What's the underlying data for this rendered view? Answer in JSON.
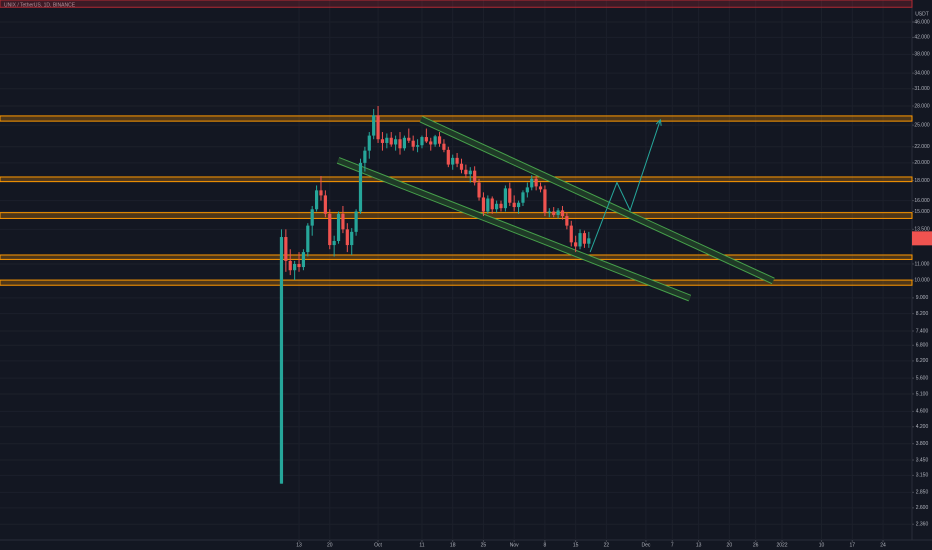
{
  "chart_data": {
    "type": "candlestick",
    "title": "UNIX / TetherUS, 1D, BINANCE",
    "price_axis_unit": "USDT",
    "log_scale": true,
    "up_color": "#26a69a",
    "down_color": "#ef5350",
    "x": [
      9,
      10,
      11,
      12,
      13,
      14,
      15,
      16,
      17,
      18,
      19,
      20,
      21,
      22,
      23,
      24,
      25,
      26,
      27,
      28,
      29,
      30,
      31,
      32,
      33,
      34,
      35,
      36,
      37,
      38,
      39,
      40,
      41,
      42,
      43,
      44,
      45,
      46,
      47,
      48,
      49,
      50,
      51,
      52,
      53,
      54,
      55,
      56,
      57,
      58,
      59,
      60,
      61,
      62,
      63,
      64,
      65,
      66,
      67,
      68,
      69,
      70,
      71,
      72,
      73,
      74,
      75,
      76,
      77,
      78,
      79
    ],
    "open": [
      3.0,
      12.9,
      11.2,
      10.6,
      11.0,
      10.8,
      11.8,
      13.8,
      15.2,
      17,
      16.5,
      14.8,
      12.3,
      12.6,
      14.8,
      13.5,
      12.3,
      13.3,
      15,
      20,
      21.5,
      23.5,
      26.5,
      23,
      22.5,
      23.2,
      22.3,
      23,
      21.8,
      23.2,
      22.8,
      22,
      22.2,
      23.3,
      22.7,
      22.3,
      23.4,
      22.4,
      21.6,
      19.8,
      20.6,
      19.9,
      19.2,
      18.7,
      19.1,
      17.8,
      16.3,
      15,
      16.2,
      15.2,
      15.7,
      15.3,
      17.2,
      15.8,
      15.4,
      15.8,
      16.8,
      17.3,
      18.2,
      17.4,
      17.1,
      14.9,
      15,
      14.7,
      15.1,
      14.6,
      13.8,
      12.5,
      12.2,
      13.2,
      12.4
    ],
    "high": [
      13.5,
      13.5,
      12,
      11.2,
      11.8,
      12,
      14,
      15.5,
      17.5,
      18.5,
      17,
      15.2,
      13,
      15,
      15.5,
      14,
      13.6,
      15.2,
      20.5,
      22,
      24,
      27.5,
      28,
      24,
      23.8,
      24,
      23.5,
      24,
      23.5,
      24.5,
      23.5,
      23,
      23.5,
      24.5,
      23.2,
      23.6,
      24,
      23,
      22,
      21,
      21.2,
      20.5,
      19.8,
      19.5,
      19.6,
      18.2,
      16.8,
      16.5,
      16.4,
      16,
      16,
      17.5,
      17.8,
      16.5,
      16,
      17,
      17.8,
      18.6,
      18.5,
      17.8,
      17.5,
      15.3,
      15.4,
      15.3,
      15.5,
      14.9,
      14.2,
      13,
      13.5,
      13.4,
      13.3
    ],
    "low": [
      3.0,
      10.5,
      10.3,
      10.0,
      10.5,
      10.6,
      11.5,
      13,
      15,
      16,
      14.5,
      12,
      11.5,
      12.4,
      13.2,
      11.8,
      11.6,
      13,
      14.8,
      19,
      20.5,
      23,
      22.5,
      21.5,
      21.8,
      22,
      21.5,
      21,
      21.5,
      22.5,
      21.5,
      21.3,
      21.8,
      22.5,
      21.5,
      22,
      22,
      21.3,
      19.5,
      19.2,
      19.5,
      18.8,
      18.3,
      17.8,
      17.5,
      16,
      14.6,
      14.8,
      14.8,
      14.9,
      15,
      15,
      15.5,
      15,
      14.8,
      15.5,
      16.3,
      17,
      17,
      16.8,
      14.6,
      14.5,
      14.5,
      14.4,
      14.3,
      13.5,
      12.2,
      11.8,
      12,
      12.1,
      12.1
    ],
    "close": [
      12.9,
      11.2,
      10.6,
      11.0,
      10.8,
      11.8,
      13.8,
      15.2,
      17,
      16.5,
      14.8,
      12.3,
      12.6,
      14.8,
      13.5,
      12.3,
      13.3,
      15,
      20,
      21.5,
      23.5,
      26.5,
      23,
      22.5,
      23.2,
      22.3,
      23,
      21.8,
      23.2,
      22.8,
      22,
      22.2,
      23.3,
      22.7,
      22.3,
      23.4,
      22.4,
      21.6,
      19.8,
      20.6,
      19.9,
      19.2,
      18.7,
      19.1,
      17.8,
      16.3,
      15,
      16.2,
      15.2,
      15.7,
      15.3,
      17.2,
      15.8,
      15.4,
      15.8,
      16.8,
      17.3,
      18.2,
      17.4,
      17.1,
      14.9,
      15,
      14.7,
      15.1,
      14.6,
      13.8,
      12.5,
      12.2,
      13.2,
      12.4,
      12.8
    ],
    "xlim": [
      -55.1,
      152.6
    ],
    "ylim": [
      2.15,
      52.4
    ],
    "xticks": [
      13,
      20,
      {
        "value": 31,
        "label": "Oct"
      },
      {
        "value": 41,
        "label": "11"
      },
      {
        "value": 48,
        "label": "18"
      },
      {
        "value": 55,
        "label": "25"
      },
      {
        "value": 62,
        "label": "Nov"
      },
      {
        "value": 69,
        "label": "8"
      },
      {
        "value": 76,
        "label": "15"
      },
      {
        "value": 83,
        "label": "22"
      },
      {
        "value": 92,
        "label": "Dec"
      },
      {
        "value": 98,
        "label": "7"
      },
      {
        "value": 104,
        "label": "13"
      },
      {
        "value": 111,
        "label": "20"
      },
      {
        "value": 117,
        "label": "26"
      },
      {
        "value": 123,
        "label": "2022"
      },
      {
        "value": 132,
        "label": "10"
      },
      {
        "value": 139,
        "label": "17"
      },
      {
        "value": 146,
        "label": "24"
      }
    ],
    "yticks": [
      {
        "value": 46,
        "label": "46.000"
      },
      {
        "value": 42,
        "label": "42.000"
      },
      {
        "value": 38,
        "label": "38.000"
      },
      {
        "value": 34,
        "label": "34.000"
      },
      {
        "value": 31,
        "label": "31.000"
      },
      {
        "value": 28,
        "label": "28.000"
      },
      {
        "value": 25,
        "label": "25.000"
      },
      {
        "value": 22,
        "label": "22.000"
      },
      {
        "value": 20,
        "label": "20.000"
      },
      {
        "value": 18,
        "label": "18.000"
      },
      {
        "value": 16,
        "label": "16.000"
      },
      {
        "value": 15,
        "label": "15.000"
      },
      {
        "value": 13.5,
        "label": "13.500"
      },
      {
        "value": 11,
        "label": "11.000"
      },
      {
        "value": 10,
        "label": "10.000"
      },
      {
        "value": 9,
        "label": "9.000"
      },
      {
        "value": 8.2,
        "label": "8.200"
      },
      {
        "value": 7.4,
        "label": "7.400"
      },
      {
        "value": 6.8,
        "label": "6.800"
      },
      {
        "value": 6.2,
        "label": "6.200"
      },
      {
        "value": 5.6,
        "label": "5.600"
      },
      {
        "value": 5.1,
        "label": "5.100"
      },
      {
        "value": 4.6,
        "label": "4.600"
      },
      {
        "value": 4.2,
        "label": "4.200"
      },
      {
        "value": 3.8,
        "label": "3.800"
      },
      {
        "value": 3.45,
        "label": "3.450"
      },
      {
        "value": 3.15,
        "label": "3.150"
      },
      {
        "value": 2.85,
        "label": "2.850"
      },
      {
        "value": 2.6,
        "label": "2.600"
      },
      {
        "value": 2.36,
        "label": "2.360"
      }
    ],
    "grid": true,
    "zones": [
      {
        "low": 50.2,
        "high": 52.4,
        "color": "#b22833"
      },
      {
        "low": 25.6,
        "high": 26.4,
        "color": "#ff9800"
      },
      {
        "low": 17.9,
        "high": 18.4,
        "color": "#ff9800"
      },
      {
        "low": 14.4,
        "high": 14.9,
        "color": "#ff9800"
      },
      {
        "low": 11.3,
        "high": 11.6,
        "color": "#ff9800"
      },
      {
        "low": 9.7,
        "high": 10.0,
        "color": "#ff9800"
      }
    ],
    "channels": [
      {
        "x": [
          40.8,
          121
        ],
        "y": [
          25.9,
          9.95
        ],
        "color": "#4caf50"
      },
      {
        "x": [
          21.9,
          102
        ],
        "y": [
          20.3,
          8.99
        ],
        "color": "#4caf50"
      }
    ],
    "projection": {
      "x": [
        79.3,
        85.4,
        88.4,
        95.3
      ],
      "y": [
        11.8,
        17.8,
        15.1,
        25.8
      ],
      "color": "#26a69a"
    }
  }
}
